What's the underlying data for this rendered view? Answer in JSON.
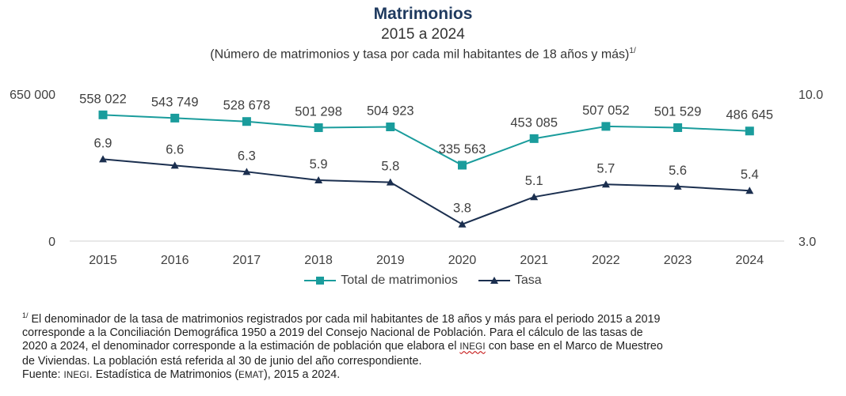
{
  "header": {
    "title": "Matrimonios",
    "period": "2015 a 2024",
    "units": "(Número de matrimonios y tasa por cada mil habitantes de 18 años y más)",
    "units_note_mark": "1/"
  },
  "chart_data": {
    "type": "line",
    "title": "Matrimonios",
    "subtitle": "2015 a 2024",
    "categories": [
      "2015",
      "2016",
      "2017",
      "2018",
      "2019",
      "2020",
      "2021",
      "2022",
      "2023",
      "2024"
    ],
    "series": [
      {
        "name": "Total de matrimonios",
        "axis": "left",
        "marker": "square",
        "color": "#1a9c9c",
        "values": [
          558022,
          543749,
          528678,
          501298,
          504923,
          335563,
          453085,
          507052,
          501529,
          486645
        ],
        "labels": [
          "558 022",
          "543 749",
          "528 678",
          "501 298",
          "504 923",
          "335 563",
          "453 085",
          "507 052",
          "501 529",
          "486 645"
        ]
      },
      {
        "name": "Tasa",
        "axis": "right",
        "marker": "triangle",
        "color": "#1b2f4f",
        "values": [
          6.9,
          6.6,
          6.3,
          5.9,
          5.8,
          3.8,
          5.1,
          5.7,
          5.6,
          5.4
        ],
        "labels": [
          "6.9",
          "6.6",
          "6.3",
          "5.9",
          "5.8",
          "3.8",
          "5.1",
          "5.7",
          "5.6",
          "5.4"
        ]
      }
    ],
    "left_axis": {
      "min": 0,
      "max": 650000,
      "tick_labels": [
        "0",
        "650 000"
      ]
    },
    "right_axis": {
      "min": 3.0,
      "max": 10.0,
      "tick_labels": [
        "3.0",
        "10.0"
      ]
    },
    "legend": {
      "position": "bottom"
    },
    "grid": false
  },
  "footnote": {
    "mark": "1/",
    "line1": "El denominador de la tasa de matrimonios registrados por cada mil habitantes de 18 años y más para el periodo 2015 a 2019",
    "line2": "corresponde a la Conciliación Demográfica 1950 a 2019 del Consejo Nacional de Población. Para el cálculo de las tasas de",
    "line3a": "2020 a 2024, el denominador corresponde a la estimación de población que elabora el ",
    "line3_inegi": "INEGI",
    "line3b": " con base en el Marco de Muestreo",
    "line4": "de Viviendas. La población está referida al 30 de junio del año correspondiente.",
    "source_prefix": "Fuente: ",
    "source_inegi": "INEGI",
    "source_middle": ". Estadística de Matrimonios (",
    "source_emat": "EMAT",
    "source_end": "), 2015 a 2024."
  }
}
